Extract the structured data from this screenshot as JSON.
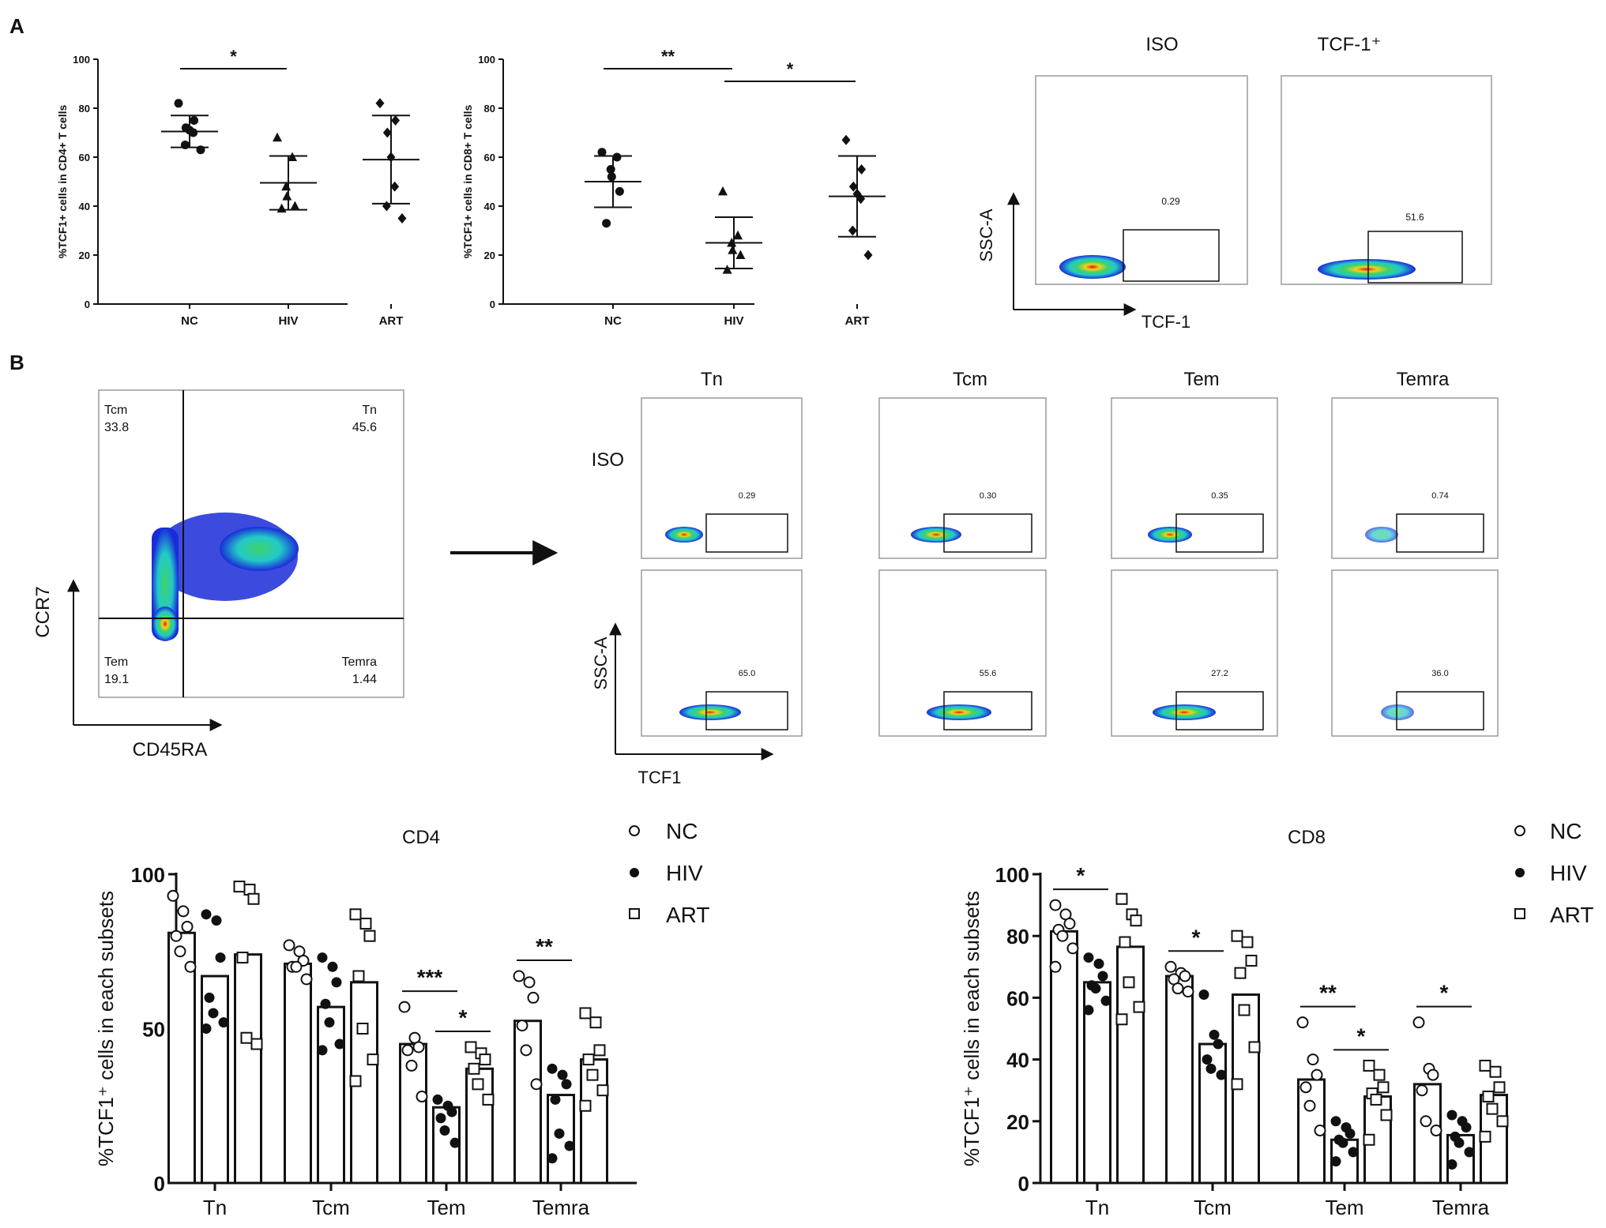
{
  "panel_labels": {
    "a": "A",
    "b": "B"
  },
  "colors": {
    "ink": "#111111",
    "density_low": "#1a2bd8",
    "density_mid": "#22c9c9",
    "density_high": "#e11b0c"
  },
  "significance": {
    "one": "*",
    "two": "**",
    "three": "***"
  },
  "panel_a": {
    "chart1": {
      "ylabel": "%TCF1+ cells in CD4+ T cells"
    },
    "chart2": {
      "ylabel": "%TCF1+ cells in CD8+ T cells"
    },
    "flow": {
      "col_iso": "ISO",
      "col_tcf": "TCF-1⁺",
      "iso_value": "0.29",
      "tcf_value": "51.6",
      "y_axis": "SSC-A",
      "x_axis": "TCF-1"
    }
  },
  "panel_b": {
    "gate_plot": {
      "q_tl_name": "Tcm",
      "q_tl_value": "33.8",
      "q_tr_name": "Tn",
      "q_tr_value": "45.6",
      "q_bl_name": "Tem",
      "q_bl_value": "19.1",
      "q_br_name": "Temra",
      "q_br_value": "1.44",
      "y_axis": "CCR7",
      "x_axis": "CD45RA"
    },
    "grid": {
      "col_labels": [
        "Tn",
        "Tcm",
        "Tem",
        "Temra"
      ],
      "row_iso_label": "ISO",
      "iso_values": [
        "0.29",
        "0.30",
        "0.35",
        "0.74"
      ],
      "tcf_values": [
        "65.0",
        "55.6",
        "27.2",
        "36.0"
      ],
      "y_axis": "SSC-A",
      "x_axis": "TCF1"
    },
    "legend": {
      "nc": "NC",
      "hiv": "HIV",
      "art": "ART"
    }
  },
  "chart_data": [
    {
      "type": "scatter",
      "title": "",
      "xlabel": "",
      "ylabel": "%TCF1+ cells in CD4+ T cells",
      "categories": [
        "NC",
        "HIV",
        "ART"
      ],
      "ylim": [
        0,
        100
      ],
      "yticks": [
        "0",
        "20",
        "40",
        "60",
        "80",
        "100"
      ],
      "markers": [
        "circle",
        "triangle",
        "diamond"
      ],
      "series": [
        {
          "name": "NC",
          "values": [
            82,
            75,
            72,
            71,
            70,
            65,
            63
          ]
        },
        {
          "name": "HIV",
          "values": [
            68,
            60,
            48,
            44,
            40,
            39
          ]
        },
        {
          "name": "ART",
          "values": [
            82,
            75,
            70,
            60,
            48,
            40,
            35
          ]
        }
      ],
      "mean": [
        70.5,
        49.5,
        59
      ],
      "sd": [
        6.5,
        11,
        18
      ],
      "significance": [
        {
          "from": 0,
          "to": 1,
          "label": "*"
        }
      ]
    },
    {
      "type": "scatter",
      "title": "",
      "xlabel": "",
      "ylabel": "%TCF1+ cells in CD8+ T cells",
      "categories": [
        "NC",
        "HIV",
        "ART"
      ],
      "ylim": [
        0,
        100
      ],
      "yticks": [
        "0",
        "20",
        "40",
        "60",
        "80",
        "100"
      ],
      "markers": [
        "circle",
        "triangle",
        "diamond"
      ],
      "series": [
        {
          "name": "NC",
          "values": [
            62,
            60,
            55,
            52,
            46,
            33
          ]
        },
        {
          "name": "HIV",
          "values": [
            46,
            28,
            25,
            22,
            20,
            14
          ]
        },
        {
          "name": "ART",
          "values": [
            67,
            55,
            48,
            45,
            43,
            30,
            20
          ]
        }
      ],
      "mean": [
        50,
        25,
        44
      ],
      "sd": [
        10.5,
        10.5,
        16.5
      ],
      "significance": [
        {
          "from": 0,
          "to": 1,
          "label": "**"
        },
        {
          "from": 1,
          "to": 2,
          "label": "*"
        }
      ]
    },
    {
      "type": "bar",
      "title": "CD4",
      "xlabel": "",
      "ylabel": "%TCF1⁺ cells in each subsets",
      "categories": [
        "Tn",
        "Tcm",
        "Tem",
        "Temra"
      ],
      "ylim": [
        0,
        100
      ],
      "yticks": [
        "0",
        "50",
        "100"
      ],
      "series": [
        {
          "name": "NC",
          "style": "open-circle",
          "values": [
            81,
            71,
            45,
            52.5
          ],
          "points": [
            [
              93,
              88,
              83,
              80,
              75,
              70
            ],
            [
              77,
              75,
              72,
              70,
              70,
              66
            ],
            [
              57,
              47,
              44,
              43,
              38,
              28
            ],
            [
              67,
              65,
              60,
              51,
              43,
              32
            ]
          ]
        },
        {
          "name": "HIV",
          "style": "filled-circle",
          "values": [
            67,
            57,
            24.5,
            28.5
          ],
          "points": [
            [
              87,
              85,
              73,
              60,
              55,
              52,
              50
            ],
            [
              73,
              70,
              65,
              58,
              52,
              45,
              43
            ],
            [
              27,
              25,
              23,
              21,
              17,
              13
            ],
            [
              37,
              35,
              32,
              27,
              16,
              12,
              8
            ]
          ]
        },
        {
          "name": "ART",
          "style": "open-square",
          "values": [
            74,
            65,
            37,
            40
          ],
          "points": [
            [
              96,
              95,
              92,
              73,
              47,
              45
            ],
            [
              87,
              84,
              80,
              67,
              50,
              40,
              33
            ],
            [
              44,
              42,
              40,
              37,
              32,
              27
            ],
            [
              55,
              52,
              43,
              40,
              35,
              30,
              25
            ]
          ]
        }
      ],
      "significance": [
        {
          "group": "Tem",
          "from": "NC",
          "to": "HIV",
          "label": "***"
        },
        {
          "group": "Tem",
          "from": "HIV",
          "to": "ART",
          "label": "*"
        },
        {
          "group": "Temra",
          "from": "NC",
          "to": "HIV",
          "label": "**"
        }
      ]
    },
    {
      "type": "bar",
      "title": "CD8",
      "xlabel": "",
      "ylabel": "%TCF1⁺ cells in each subsets",
      "categories": [
        "Tn",
        "Tcm",
        "Tem",
        "Temra"
      ],
      "ylim": [
        0,
        100
      ],
      "yticks": [
        "0",
        "20",
        "40",
        "60",
        "80",
        "100"
      ],
      "series": [
        {
          "name": "NC",
          "style": "open-circle",
          "values": [
            81.5,
            67,
            33.5,
            32
          ],
          "points": [
            [
              90,
              87,
              84,
              82,
              80,
              76,
              70
            ],
            [
              70,
              68,
              67,
              66,
              63,
              62
            ],
            [
              52,
              40,
              35,
              31,
              25,
              17
            ],
            [
              52,
              37,
              35,
              30,
              20,
              17
            ]
          ]
        },
        {
          "name": "HIV",
          "style": "filled-circle",
          "values": [
            65,
            45,
            14,
            15.5
          ],
          "points": [
            [
              73,
              71,
              67,
              64,
              63,
              59,
              56
            ],
            [
              61,
              48,
              45,
              40,
              37,
              35
            ],
            [
              20,
              18,
              16,
              14,
              13,
              10,
              7
            ],
            [
              22,
              20,
              18,
              15,
              13,
              10,
              6
            ]
          ]
        },
        {
          "name": "ART",
          "style": "open-square",
          "values": [
            76.5,
            61,
            28,
            28.5
          ],
          "points": [
            [
              92,
              87,
              85,
              78,
              65,
              57,
              53
            ],
            [
              80,
              78,
              72,
              68,
              56,
              44,
              32
            ],
            [
              38,
              35,
              31,
              29,
              27,
              22,
              14
            ],
            [
              38,
              36,
              31,
              28,
              24,
              20,
              15
            ]
          ]
        }
      ],
      "significance": [
        {
          "group": "Tn",
          "from": "NC",
          "to": "HIV",
          "label": "*"
        },
        {
          "group": "Tcm",
          "from": "NC",
          "to": "HIV",
          "label": "*"
        },
        {
          "group": "Tem",
          "from": "NC",
          "to": "HIV",
          "label": "**"
        },
        {
          "group": "Tem",
          "from": "HIV",
          "to": "ART",
          "label": "*"
        },
        {
          "group": "Temra",
          "from": "NC",
          "to": "HIV",
          "label": "*"
        }
      ]
    }
  ]
}
